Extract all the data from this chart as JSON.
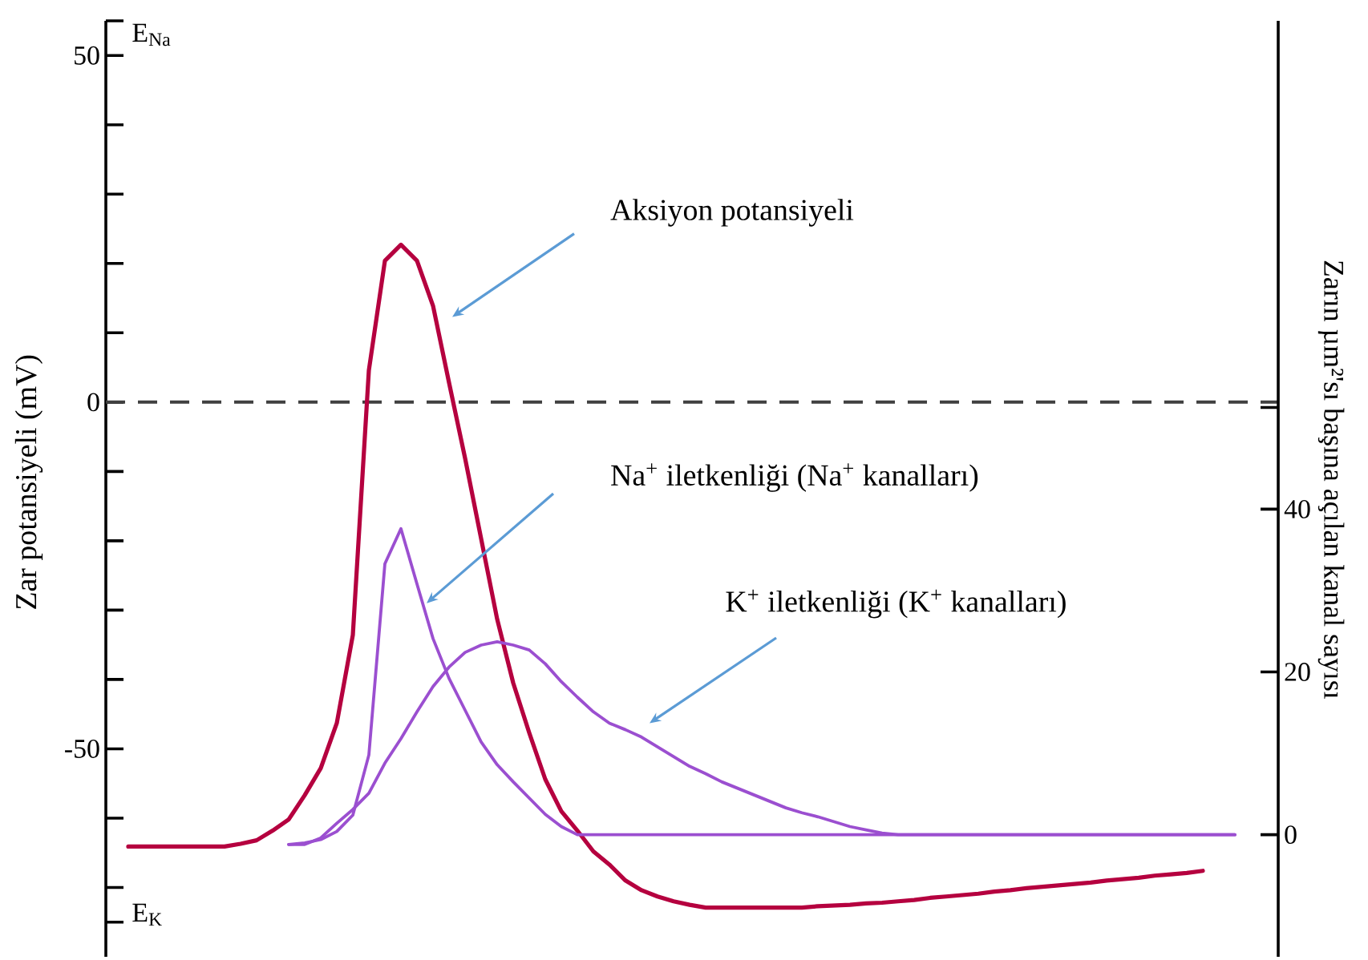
{
  "chart_data": {
    "type": "line",
    "ylabel": "Zar potansiyeli (mV)",
    "y2label": "Zarın µm²'sı başına açılan kanal sayısı",
    "categories": [
      null,
      null,
      null,
      null,
      null,
      null,
      null,
      null,
      null,
      null,
      null,
      null,
      null,
      null,
      null,
      null,
      null,
      null,
      null,
      null,
      null,
      null,
      null,
      null,
      null,
      null,
      null,
      null,
      null,
      null,
      null,
      null,
      null,
      null,
      null,
      null,
      null,
      null,
      null,
      null,
      null,
      null,
      null,
      null,
      null,
      null,
      null,
      null,
      null,
      null,
      null,
      null,
      null,
      null,
      null,
      null,
      null,
      null,
      null,
      null,
      null,
      null,
      null,
      null,
      null,
      null,
      null,
      null,
      null,
      null,
      null
    ],
    "ylim": [
      -80,
      55
    ],
    "annotations": [
      "E$_{Na}$",
      "Aksiyon potansiyeli",
      "Na$^{+}$ iletkenliği (Na$^{+}$ kanalları)",
      "K$^{+}$ iletkenliği (K$^{+}$ kanalları)",
      "E$_{K}$"
    ],
    "yticks": [
      {
        "value": -75,
        "label": null
      },
      {
        "value": -70,
        "label": null
      },
      {
        "value": -60,
        "label": null
      },
      -50,
      {
        "value": -40,
        "label": null
      },
      {
        "value": -30,
        "label": null
      },
      {
        "value": -20,
        "label": null
      },
      {
        "value": -10,
        "label": null
      },
      0,
      {
        "value": 10,
        "label": null
      },
      {
        "value": 20,
        "label": null
      },
      {
        "value": 30,
        "label": null
      },
      {
        "value": 40,
        "label": null
      },
      50,
      {
        "value": 55,
        "label": null
      }
    ],
    "y2lim": [
      -15,
      100
    ],
    "y2ticks": [
      0,
      20,
      40,
      {
        "value": 52.5,
        "label": null
      }
    ],
    "ref_lines": [
      {
        "axis": "y",
        "value": 0,
        "color": "#404040",
        "line_style": "dashed"
      }
    ],
    "series": [
      {
        "color": "#b5003f",
        "line_style": "solid",
        "values": [
          -64.1,
          -64.1,
          -64.1,
          -64.1,
          -64.1,
          -64.1,
          -64.1,
          -63.7,
          -63.2,
          -61.8,
          -60.2,
          -56.7,
          -52.8,
          -46.3,
          -33.6,
          4.6,
          20.4,
          22.7,
          20.4,
          13.9,
          2.8,
          -8.1,
          -19.7,
          -31.3,
          -40.5,
          -47.7,
          -54.4,
          -59.0,
          -61.8,
          -64.8,
          -66.7,
          -69.0,
          -70.4,
          -71.3,
          -72.0,
          -72.5,
          -72.9,
          -72.9,
          -72.9,
          -72.9,
          -72.9,
          -72.9,
          -72.9,
          -72.7,
          -72.6,
          -72.5,
          -72.3,
          -72.2,
          -72.0,
          -71.8,
          -71.5,
          -71.3,
          -71.1,
          -70.9,
          -70.6,
          -70.4,
          -70.1,
          -69.9,
          -69.7,
          -69.5,
          -69.3,
          -69.0,
          -68.8,
          -68.6,
          -68.3,
          -68.1,
          -67.9,
          -67.6,
          null,
          null,
          null
        ]
      },
      {
        "color": "#9b4fd0",
        "axis": "y2",
        "line_style": "solid",
        "values": [
          null,
          null,
          null,
          null,
          null,
          null,
          null,
          null,
          null,
          null,
          -1.2,
          -1.0,
          -0.6,
          0.4,
          2.4,
          9.8,
          33.3,
          37.6,
          30.8,
          24.1,
          19.2,
          15.3,
          11.4,
          8.6,
          6.5,
          4.5,
          2.5,
          1.0,
          0,
          0,
          0,
          0,
          0,
          0,
          0,
          0,
          0,
          0,
          0,
          0,
          0,
          0,
          0,
          0,
          0,
          0,
          0,
          0,
          0,
          0,
          0,
          0,
          0,
          0,
          0,
          0,
          0,
          0,
          0,
          0,
          0,
          0,
          0,
          0,
          0,
          0,
          0,
          0,
          0,
          0,
          null
        ]
      },
      {
        "color": "#9b4fd0",
        "axis": "y2",
        "line_style": "solid",
        "values": [
          null,
          null,
          null,
          null,
          null,
          null,
          null,
          null,
          null,
          null,
          -1.2,
          -1.2,
          -0.4,
          1.4,
          3.1,
          5.1,
          8.8,
          11.8,
          15.1,
          18.2,
          20.6,
          22.4,
          23.3,
          23.7,
          23.3,
          22.7,
          21.0,
          18.8,
          16.9,
          15.1,
          13.7,
          12.9,
          12.0,
          10.8,
          9.6,
          8.4,
          7.5,
          6.5,
          5.7,
          4.9,
          4.1,
          3.3,
          2.7,
          2.2,
          1.6,
          1.0,
          0.6,
          0.2,
          0,
          0,
          0,
          0,
          0,
          0,
          0,
          0,
          0,
          0,
          0,
          0,
          0,
          0,
          0,
          0,
          0,
          0,
          0,
          0,
          0,
          0,
          null
        ]
      }
    ]
  }
}
